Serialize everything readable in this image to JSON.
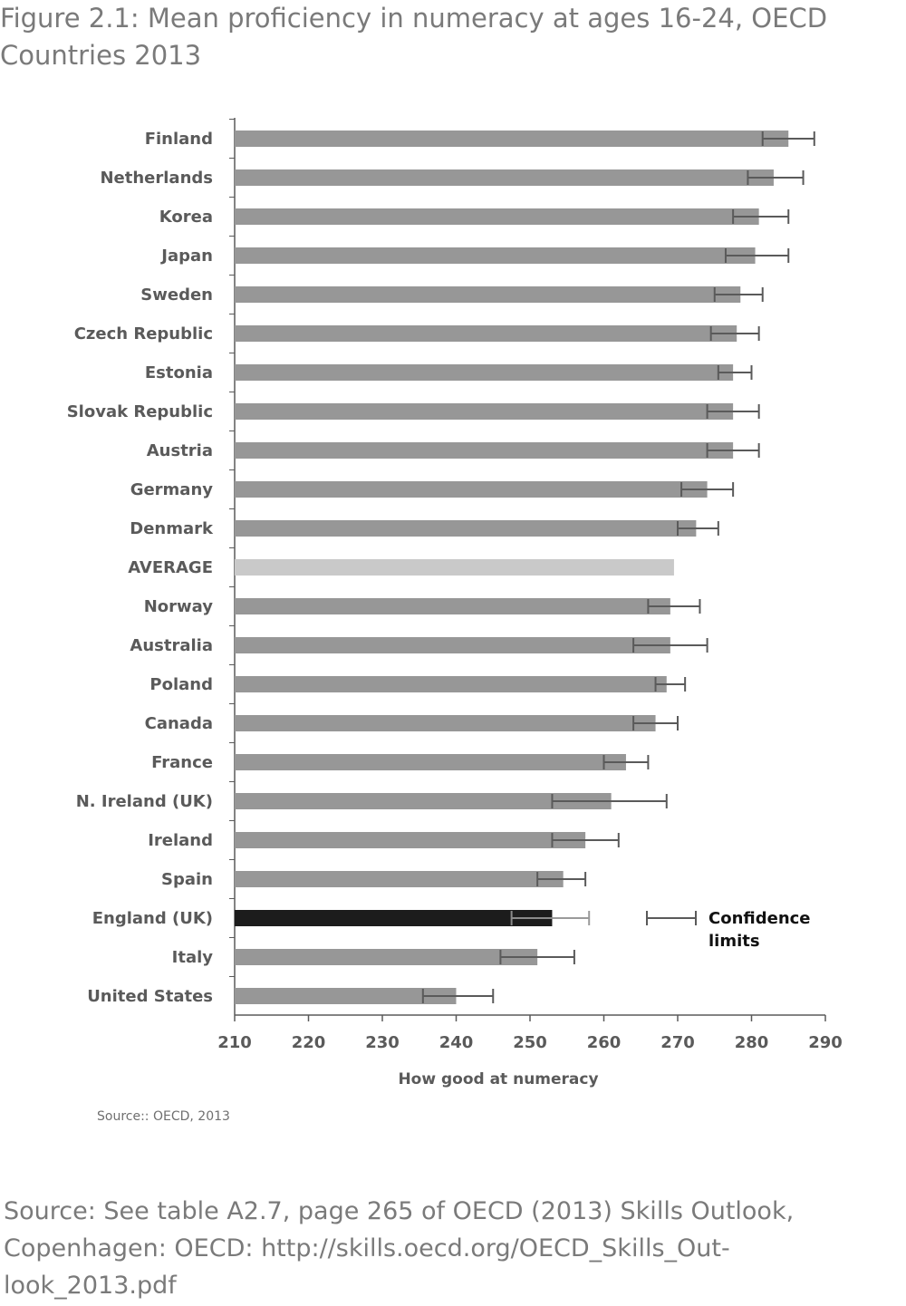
{
  "title": {
    "line1": "Figure 2.1: Mean proficiency in numeracy at ages 16-24, OECD",
    "line2": "Countries 2013"
  },
  "chart_source": "Source:: OECD, 2013",
  "footer_source": {
    "line1": " Source: See table A2.7, page 265 of OECD (2013) Skills Outlook,",
    "line2": "Copenhagen: OECD: http://skills.oecd.org/OECD_Skills_Out-",
    "line3": "look_2013.pdf"
  },
  "colors": {
    "bar": "#979797",
    "average": "#c9c9c9",
    "highlight": "#1c1c1c",
    "error": "#5a5a5a",
    "highlight_error_right": "#9a9a9a",
    "axis": "#5a5a5a"
  },
  "chart_data": {
    "type": "bar",
    "orientation": "horizontal",
    "title": "Figure 2.1: Mean proficiency in numeracy at ages 16-24, OECD Countries 2013",
    "xlabel": "How good at numeracy",
    "ylabel": "",
    "xlim": [
      210,
      290
    ],
    "xticks": [
      210,
      220,
      230,
      240,
      250,
      260,
      270,
      280,
      290
    ],
    "categories": [
      "Finland",
      "Netherlands",
      "Korea",
      "Japan",
      "Sweden",
      "Czech Republic",
      "Estonia",
      "Slovak Republic",
      "Austria",
      "Germany",
      "Denmark",
      "AVERAGE",
      "Norway",
      "Australia",
      "Poland",
      "Canada",
      "France",
      "N. Ireland (UK)",
      "Ireland",
      "Spain",
      "England (UK)",
      "Italy",
      "United States"
    ],
    "values": [
      285,
      283,
      281,
      280.5,
      278.5,
      278,
      277.5,
      277.5,
      277.5,
      274,
      272.5,
      269.5,
      269,
      269,
      268.5,
      267,
      263,
      261,
      257.5,
      254.5,
      253,
      251,
      240
    ],
    "ci_low": [
      281.5,
      279.5,
      277.5,
      276.5,
      275,
      274.5,
      275.5,
      274,
      274,
      270.5,
      270,
      null,
      266,
      264,
      267,
      264,
      260,
      253,
      253,
      251,
      247.5,
      246,
      235.5
    ],
    "ci_high": [
      288.5,
      287,
      285,
      285,
      281.5,
      281,
      280,
      281,
      281,
      277.5,
      275.5,
      null,
      273,
      274,
      271,
      270,
      266,
      268.5,
      262,
      257.5,
      258,
      256,
      245
    ],
    "average_category": "AVERAGE",
    "highlight_category": "England (UK)",
    "legend": {
      "label_line1": "Confidence",
      "label_line2": "limits",
      "position": "right-lower"
    },
    "grid": false
  }
}
